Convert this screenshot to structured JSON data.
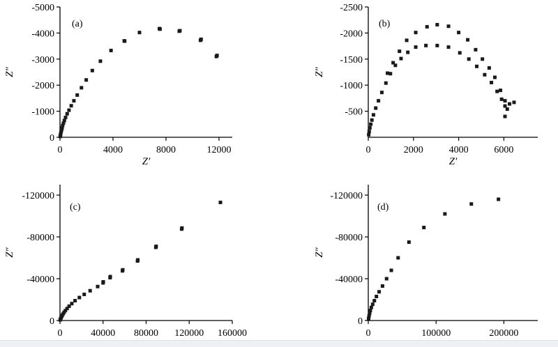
{
  "chart_data": [
    {
      "type": "scatter",
      "panel_label": "(a)",
      "xlabel": "Z′",
      "ylabel": "Z″",
      "xlim": [
        0,
        13000
      ],
      "ylim": [
        0,
        -5000
      ],
      "xticks": [
        0,
        4000,
        8000,
        12000
      ],
      "xtick_labels": [
        "0",
        "4000",
        "8000",
        "12000"
      ],
      "yticks": [
        0,
        -1000,
        -2000,
        -3000,
        -4000,
        -5000
      ],
      "ytick_labels": [
        "0",
        "-1000",
        "-2000",
        "-3000",
        "-4000",
        "-5000"
      ],
      "grid": false,
      "points": [
        [
          20,
          -30
        ],
        [
          40,
          -90
        ],
        [
          60,
          -150
        ],
        [
          90,
          -220
        ],
        [
          120,
          -290
        ],
        [
          160,
          -360
        ],
        [
          200,
          -450
        ],
        [
          260,
          -540
        ],
        [
          330,
          -640
        ],
        [
          420,
          -760
        ],
        [
          540,
          -900
        ],
        [
          680,
          -1040
        ],
        [
          850,
          -1210
        ],
        [
          1050,
          -1400
        ],
        [
          1300,
          -1620
        ],
        [
          1620,
          -1900
        ],
        [
          1980,
          -2200
        ],
        [
          2440,
          -2560
        ],
        [
          3050,
          -2920
        ],
        [
          3850,
          -3330
        ],
        [
          4850,
          -3700
        ],
        [
          6000,
          -4020
        ],
        [
          7500,
          -4170
        ],
        [
          9000,
          -4070
        ],
        [
          10600,
          -3720
        ],
        [
          11800,
          -3100
        ],
        [
          4880,
          -3690
        ],
        [
          7550,
          -4150
        ],
        [
          9050,
          -4090
        ],
        [
          10650,
          -3760
        ],
        [
          11850,
          -3140
        ]
      ]
    },
    {
      "type": "scatter",
      "panel_label": "(b)",
      "xlabel": "Z′",
      "ylabel": "Z″",
      "xlim": [
        0,
        7500
      ],
      "ylim": [
        0,
        -2500
      ],
      "xticks": [
        0,
        2000,
        4000,
        6000
      ],
      "xtick_labels": [
        "0",
        "2000",
        "4000",
        "6000"
      ],
      "yticks": [
        -500,
        -1000,
        -1500,
        -2000,
        -2500
      ],
      "ytick_labels": [
        "-500",
        "-1000",
        "-1500",
        "-2000",
        "-2500"
      ],
      "grid": false,
      "points": [
        [
          20,
          -50
        ],
        [
          40,
          -110
        ],
        [
          70,
          -180
        ],
        [
          110,
          -250
        ],
        [
          160,
          -330
        ],
        [
          230,
          -430
        ],
        [
          330,
          -560
        ],
        [
          450,
          -700
        ],
        [
          600,
          -860
        ],
        [
          780,
          -1040
        ],
        [
          980,
          -1220
        ],
        [
          1200,
          -1380
        ],
        [
          1450,
          -1510
        ],
        [
          1750,
          -1630
        ],
        [
          2100,
          -1730
        ],
        [
          2550,
          -1760
        ],
        [
          3050,
          -1760
        ],
        [
          3550,
          -1730
        ],
        [
          4050,
          -1620
        ],
        [
          4450,
          -1500
        ],
        [
          4800,
          -1360
        ],
        [
          5150,
          -1200
        ],
        [
          5450,
          -1050
        ],
        [
          5700,
          -880
        ],
        [
          5900,
          -730
        ],
        [
          6050,
          -600
        ],
        [
          6150,
          -540
        ],
        [
          850,
          -1230
        ],
        [
          1100,
          -1430
        ],
        [
          1380,
          -1650
        ],
        [
          1700,
          -1860
        ],
        [
          2100,
          -2010
        ],
        [
          2600,
          -2120
        ],
        [
          3050,
          -2160
        ],
        [
          3550,
          -2130
        ],
        [
          4000,
          -2010
        ],
        [
          4400,
          -1870
        ],
        [
          4750,
          -1680
        ],
        [
          5050,
          -1500
        ],
        [
          5350,
          -1330
        ],
        [
          5600,
          -1150
        ],
        [
          5850,
          -900
        ],
        [
          6050,
          -700
        ],
        [
          6250,
          -640
        ],
        [
          6450,
          -670
        ],
        [
          6050,
          -400
        ]
      ]
    },
    {
      "type": "scatter",
      "panel_label": "(c)",
      "xlabel": "",
      "ylabel": "Z″",
      "xlim": [
        0,
        160000
      ],
      "ylim": [
        0,
        -130000
      ],
      "xticks": [
        0,
        40000,
        80000,
        120000,
        160000
      ],
      "xtick_labels": [
        "0",
        "40000",
        "80000",
        "120000",
        "160000"
      ],
      "yticks": [
        0,
        -40000,
        -80000,
        -120000
      ],
      "ytick_labels": [
        "0",
        "-40000",
        "-80000",
        "-120000"
      ],
      "grid": false,
      "points": [
        [
          200,
          -600
        ],
        [
          500,
          -1500
        ],
        [
          900,
          -2500
        ],
        [
          1400,
          -3600
        ],
        [
          2000,
          -4800
        ],
        [
          2800,
          -6200
        ],
        [
          3800,
          -7800
        ],
        [
          5000,
          -9500
        ],
        [
          6600,
          -11500
        ],
        [
          8500,
          -13700
        ],
        [
          11000,
          -16200
        ],
        [
          14000,
          -19000
        ],
        [
          18000,
          -22000
        ],
        [
          22500,
          -25000
        ],
        [
          28000,
          -28500
        ],
        [
          35000,
          -32500
        ],
        [
          40000,
          -36000
        ],
        [
          46500,
          -41000
        ],
        [
          58000,
          -47500
        ],
        [
          72000,
          -57000
        ],
        [
          89000,
          -70000
        ],
        [
          113000,
          -87500
        ],
        [
          149000,
          -113000
        ],
        [
          40200,
          -37000
        ],
        [
          46700,
          -42000
        ],
        [
          58300,
          -48500
        ],
        [
          72300,
          -58000
        ],
        [
          89300,
          -71000
        ],
        [
          113300,
          -88500
        ]
      ]
    },
    {
      "type": "scatter",
      "panel_label": "(d)",
      "xlabel": "",
      "ylabel": "Z″",
      "xlim": [
        0,
        250000
      ],
      "ylim": [
        0,
        -130000
      ],
      "xticks": [
        0,
        100000,
        200000
      ],
      "xtick_labels": [
        "0",
        "100000",
        "200000"
      ],
      "yticks": [
        0,
        -40000,
        -80000,
        -120000
      ],
      "ytick_labels": [
        "0",
        "-40000",
        "-80000",
        "-120000"
      ],
      "grid": false,
      "points": [
        [
          500,
          -2000
        ],
        [
          1200,
          -4500
        ],
        [
          2000,
          -7000
        ],
        [
          3000,
          -9500
        ],
        [
          4500,
          -12500
        ],
        [
          6500,
          -15500
        ],
        [
          9000,
          -19000
        ],
        [
          12000,
          -23000
        ],
        [
          16000,
          -27500
        ],
        [
          21000,
          -33000
        ],
        [
          27000,
          -40000
        ],
        [
          34000,
          -48000
        ],
        [
          44000,
          -60000
        ],
        [
          60000,
          -75000
        ],
        [
          82000,
          -89000
        ],
        [
          113000,
          -102000
        ],
        [
          152000,
          -111500
        ],
        [
          192000,
          -116000
        ]
      ]
    }
  ]
}
